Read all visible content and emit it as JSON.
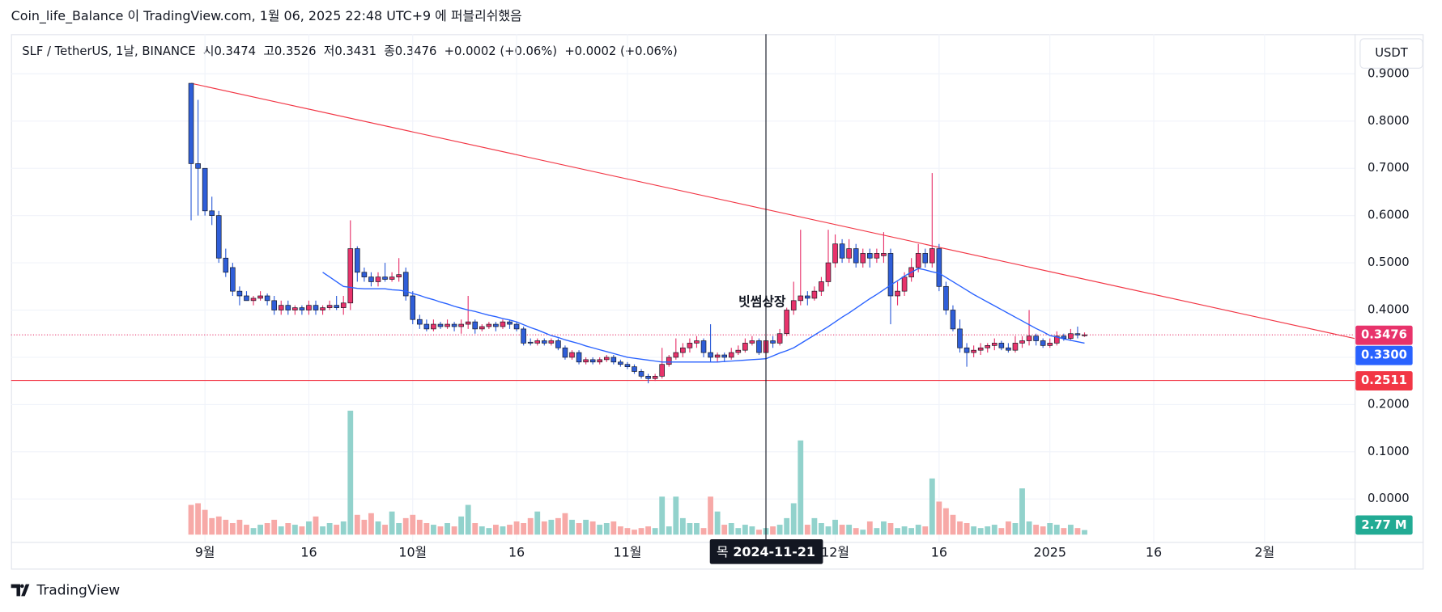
{
  "header": "Coin_life_Balance 이 TradingView.com, 1월 06, 2025 22:48 UTC+9 에 퍼블리쉬했음",
  "footer": "TradingView",
  "currency": "USDT",
  "chart_data": {
    "type": "candlestick",
    "legend": {
      "symbol": "SLF / TetherUS, 1날, BINANCE",
      "o_label": "시",
      "h_label": "고",
      "l_label": "저",
      "c_label": "종",
      "change": "+0.0002 (+0.06%)",
      "change2": "+0.0002 (+0.06%)"
    },
    "annotation": "빗썸상장",
    "crosshair": {
      "weekday": "목",
      "date": "2024-11-21"
    },
    "colors": {
      "up": "#e8336b",
      "down": "#2f5ed8",
      "ma": "#2962ff"
    },
    "volume_colors": {
      "up": "#92d2cc",
      "down": "#f7a9a7",
      "label": "#22ab94"
    },
    "hline": {
      "value": 0.2511,
      "color": "#f23645"
    },
    "trendline": {
      "points": [
        [
          "2024-08-30",
          0.88
        ],
        [
          "2024-12-15",
          0.536
        ]
      ],
      "color": "#f23645"
    },
    "last_labels": {
      "ma": "0.3300",
      "volume": "2.77 M"
    },
    "grid": true,
    "xlim": [
      "2024-08-04",
      "2025-02-14"
    ],
    "xticks": [
      {
        "value": "2024-09-01",
        "label": "9월"
      },
      {
        "value": "2024-09-16",
        "label": "16"
      },
      {
        "value": "2024-10-01",
        "label": "10월"
      },
      {
        "value": "2024-10-16",
        "label": "16"
      },
      {
        "value": "2024-11-01",
        "label": "11월"
      },
      {
        "value": "2024-12-01",
        "label": "12월"
      },
      {
        "value": "2024-12-16",
        "label": "16"
      },
      {
        "value": "2025-01-01",
        "label": "2025"
      },
      {
        "value": "2025-01-16",
        "label": "16"
      },
      {
        "value": "2025-02-01",
        "label": "2월"
      }
    ],
    "ylim": [
      -0.091,
      0.984
    ],
    "yticks": [
      {
        "value": 0.9,
        "label": "0.9000"
      },
      {
        "value": 0.8,
        "label": "0.8000"
      },
      {
        "value": 0.7,
        "label": "0.7000"
      },
      {
        "value": 0.6,
        "label": "0.6000"
      },
      {
        "value": 0.5,
        "label": "0.5000"
      },
      {
        "value": 0.4,
        "label": "0.4000"
      },
      {
        "value": 0.3,
        "label": "0.3000"
      },
      {
        "value": 0.2,
        "label": "0.2000"
      },
      {
        "value": 0.1,
        "label": "0.1000"
      },
      {
        "value": 0,
        "label": "0.0000"
      }
    ],
    "x": [
      "2024-08-30",
      "2024-08-31",
      "2024-09-01",
      "2024-09-02",
      "2024-09-03",
      "2024-09-04",
      "2024-09-05",
      "2024-09-06",
      "2024-09-07",
      "2024-09-08",
      "2024-09-09",
      "2024-09-10",
      "2024-09-11",
      "2024-09-12",
      "2024-09-13",
      "2024-09-14",
      "2024-09-15",
      "2024-09-16",
      "2024-09-17",
      "2024-09-18",
      "2024-09-19",
      "2024-09-20",
      "2024-09-21",
      "2024-09-22",
      "2024-09-23",
      "2024-09-24",
      "2024-09-25",
      "2024-09-26",
      "2024-09-27",
      "2024-09-28",
      "2024-09-29",
      "2024-09-30",
      "2024-10-01",
      "2024-10-02",
      "2024-10-03",
      "2024-10-04",
      "2024-10-05",
      "2024-10-06",
      "2024-10-07",
      "2024-10-08",
      "2024-10-09",
      "2024-10-10",
      "2024-10-11",
      "2024-10-12",
      "2024-10-13",
      "2024-10-14",
      "2024-10-15",
      "2024-10-16",
      "2024-10-17",
      "2024-10-18",
      "2024-10-19",
      "2024-10-20",
      "2024-10-21",
      "2024-10-22",
      "2024-10-23",
      "2024-10-24",
      "2024-10-25",
      "2024-10-26",
      "2024-10-27",
      "2024-10-28",
      "2024-10-29",
      "2024-10-30",
      "2024-10-31",
      "2024-11-01",
      "2024-11-02",
      "2024-11-03",
      "2024-11-04",
      "2024-11-05",
      "2024-11-06",
      "2024-11-07",
      "2024-11-08",
      "2024-11-09",
      "2024-11-10",
      "2024-11-11",
      "2024-11-12",
      "2024-11-13",
      "2024-11-14",
      "2024-11-15",
      "2024-11-16",
      "2024-11-17",
      "2024-11-18",
      "2024-11-19",
      "2024-11-20",
      "2024-11-21",
      "2024-11-22",
      "2024-11-23",
      "2024-11-24",
      "2024-11-25",
      "2024-11-26",
      "2024-11-27",
      "2024-11-28",
      "2024-11-29",
      "2024-11-30",
      "2024-12-01",
      "2024-12-02",
      "2024-12-03",
      "2024-12-04",
      "2024-12-05",
      "2024-12-06",
      "2024-12-07",
      "2024-12-08",
      "2024-12-09",
      "2024-12-10",
      "2024-12-11",
      "2024-12-12",
      "2024-12-13",
      "2024-12-14",
      "2024-12-15",
      "2024-12-16",
      "2024-12-17",
      "2024-12-18",
      "2024-12-19",
      "2024-12-20",
      "2024-12-21",
      "2024-12-22",
      "2024-12-23",
      "2024-12-24",
      "2024-12-25",
      "2024-12-26",
      "2024-12-27",
      "2024-12-28",
      "2024-12-29",
      "2024-12-30",
      "2024-12-31",
      "2025-01-01",
      "2025-01-02",
      "2025-01-03",
      "2025-01-04",
      "2025-01-05",
      "2025-01-06"
    ],
    "ohlc": [
      [
        0.88,
        0.88,
        0.59,
        0.71
      ],
      [
        0.71,
        0.845,
        0.6,
        0.7
      ],
      [
        0.7,
        0.7,
        0.6,
        0.61
      ],
      [
        0.61,
        0.64,
        0.58,
        0.6
      ],
      [
        0.6,
        0.61,
        0.5,
        0.51
      ],
      [
        0.51,
        0.53,
        0.47,
        0.48
      ],
      [
        0.49,
        0.5,
        0.43,
        0.44
      ],
      [
        0.44,
        0.45,
        0.41,
        0.43
      ],
      [
        0.43,
        0.44,
        0.42,
        0.42
      ],
      [
        0.42,
        0.43,
        0.41,
        0.425
      ],
      [
        0.425,
        0.44,
        0.42,
        0.43
      ],
      [
        0.43,
        0.435,
        0.41,
        0.42
      ],
      [
        0.42,
        0.43,
        0.39,
        0.4
      ],
      [
        0.4,
        0.42,
        0.39,
        0.41
      ],
      [
        0.41,
        0.42,
        0.39,
        0.4
      ],
      [
        0.4,
        0.41,
        0.39,
        0.405
      ],
      [
        0.405,
        0.41,
        0.39,
        0.4
      ],
      [
        0.4,
        0.42,
        0.39,
        0.41
      ],
      [
        0.41,
        0.42,
        0.39,
        0.4
      ],
      [
        0.4,
        0.41,
        0.39,
        0.405
      ],
      [
        0.405,
        0.42,
        0.4,
        0.41
      ],
      [
        0.41,
        0.43,
        0.4,
        0.405
      ],
      [
        0.405,
        0.43,
        0.39,
        0.415
      ],
      [
        0.415,
        0.59,
        0.4,
        0.53
      ],
      [
        0.53,
        0.535,
        0.46,
        0.48
      ],
      [
        0.48,
        0.49,
        0.46,
        0.47
      ],
      [
        0.47,
        0.48,
        0.45,
        0.46
      ],
      [
        0.46,
        0.48,
        0.45,
        0.47
      ],
      [
        0.47,
        0.5,
        0.46,
        0.465
      ],
      [
        0.465,
        0.48,
        0.46,
        0.47
      ],
      [
        0.47,
        0.51,
        0.46,
        0.475
      ],
      [
        0.48,
        0.49,
        0.42,
        0.43
      ],
      [
        0.43,
        0.44,
        0.37,
        0.38
      ],
      [
        0.38,
        0.39,
        0.36,
        0.37
      ],
      [
        0.37,
        0.38,
        0.355,
        0.36
      ],
      [
        0.36,
        0.38,
        0.355,
        0.37
      ],
      [
        0.37,
        0.375,
        0.36,
        0.365
      ],
      [
        0.365,
        0.38,
        0.36,
        0.37
      ],
      [
        0.37,
        0.375,
        0.355,
        0.365
      ],
      [
        0.365,
        0.38,
        0.35,
        0.37
      ],
      [
        0.37,
        0.43,
        0.36,
        0.375
      ],
      [
        0.375,
        0.38,
        0.35,
        0.36
      ],
      [
        0.36,
        0.37,
        0.355,
        0.365
      ],
      [
        0.365,
        0.375,
        0.36,
        0.37
      ],
      [
        0.37,
        0.375,
        0.355,
        0.365
      ],
      [
        0.365,
        0.38,
        0.36,
        0.375
      ],
      [
        0.375,
        0.38,
        0.36,
        0.37
      ],
      [
        0.37,
        0.375,
        0.355,
        0.36
      ],
      [
        0.36,
        0.365,
        0.325,
        0.33
      ],
      [
        0.332,
        0.34,
        0.325,
        0.33
      ],
      [
        0.33,
        0.34,
        0.325,
        0.335
      ],
      [
        0.335,
        0.34,
        0.325,
        0.33
      ],
      [
        0.33,
        0.34,
        0.325,
        0.335
      ],
      [
        0.335,
        0.34,
        0.315,
        0.32
      ],
      [
        0.32,
        0.325,
        0.295,
        0.3
      ],
      [
        0.3,
        0.315,
        0.295,
        0.31
      ],
      [
        0.31,
        0.315,
        0.285,
        0.29
      ],
      [
        0.29,
        0.3,
        0.285,
        0.295
      ],
      [
        0.295,
        0.3,
        0.285,
        0.29
      ],
      [
        0.29,
        0.3,
        0.285,
        0.295
      ],
      [
        0.295,
        0.305,
        0.29,
        0.3
      ],
      [
        0.3,
        0.305,
        0.285,
        0.29
      ],
      [
        0.29,
        0.295,
        0.28,
        0.285
      ],
      [
        0.285,
        0.29,
        0.275,
        0.28
      ],
      [
        0.28,
        0.285,
        0.265,
        0.27
      ],
      [
        0.27,
        0.275,
        0.255,
        0.26
      ],
      [
        0.26,
        0.265,
        0.245,
        0.255
      ],
      [
        0.255,
        0.265,
        0.25,
        0.26
      ],
      [
        0.26,
        0.32,
        0.255,
        0.285
      ],
      [
        0.285,
        0.305,
        0.28,
        0.3
      ],
      [
        0.3,
        0.34,
        0.295,
        0.31
      ],
      [
        0.31,
        0.33,
        0.3,
        0.32
      ],
      [
        0.32,
        0.34,
        0.31,
        0.33
      ],
      [
        0.33,
        0.345,
        0.32,
        0.335
      ],
      [
        0.335,
        0.34,
        0.3,
        0.31
      ],
      [
        0.31,
        0.37,
        0.29,
        0.3
      ],
      [
        0.3,
        0.31,
        0.29,
        0.305
      ],
      [
        0.305,
        0.31,
        0.29,
        0.3
      ],
      [
        0.3,
        0.32,
        0.295,
        0.31
      ],
      [
        0.31,
        0.325,
        0.305,
        0.315
      ],
      [
        0.315,
        0.34,
        0.31,
        0.33
      ],
      [
        0.33,
        0.345,
        0.325,
        0.335
      ],
      [
        0.335,
        0.34,
        0.305,
        0.31
      ],
      [
        0.31,
        0.345,
        0.3,
        0.335
      ],
      [
        0.335,
        0.345,
        0.32,
        0.33
      ],
      [
        0.33,
        0.36,
        0.325,
        0.35
      ],
      [
        0.35,
        0.405,
        0.345,
        0.4
      ],
      [
        0.4,
        0.46,
        0.39,
        0.42
      ],
      [
        0.42,
        0.57,
        0.41,
        0.43
      ],
      [
        0.43,
        0.44,
        0.41,
        0.425
      ],
      [
        0.425,
        0.45,
        0.42,
        0.44
      ],
      [
        0.44,
        0.47,
        0.43,
        0.46
      ],
      [
        0.46,
        0.57,
        0.45,
        0.5
      ],
      [
        0.5,
        0.56,
        0.49,
        0.54
      ],
      [
        0.54,
        0.55,
        0.5,
        0.51
      ],
      [
        0.51,
        0.55,
        0.5,
        0.53
      ],
      [
        0.53,
        0.54,
        0.49,
        0.5
      ],
      [
        0.5,
        0.53,
        0.49,
        0.52
      ],
      [
        0.52,
        0.53,
        0.49,
        0.51
      ],
      [
        0.51,
        0.53,
        0.5,
        0.52
      ],
      [
        0.515,
        0.565,
        0.5,
        0.52
      ],
      [
        0.52,
        0.53,
        0.37,
        0.43
      ],
      [
        0.43,
        0.46,
        0.41,
        0.44
      ],
      [
        0.44,
        0.48,
        0.43,
        0.47
      ],
      [
        0.47,
        0.51,
        0.46,
        0.49
      ],
      [
        0.49,
        0.54,
        0.48,
        0.52
      ],
      [
        0.52,
        0.53,
        0.49,
        0.5
      ],
      [
        0.5,
        0.69,
        0.49,
        0.53
      ],
      [
        0.53,
        0.54,
        0.44,
        0.45
      ],
      [
        0.45,
        0.46,
        0.39,
        0.4
      ],
      [
        0.4,
        0.41,
        0.355,
        0.36
      ],
      [
        0.36,
        0.38,
        0.31,
        0.32
      ],
      [
        0.32,
        0.33,
        0.28,
        0.31
      ],
      [
        0.31,
        0.325,
        0.3,
        0.315
      ],
      [
        0.315,
        0.33,
        0.305,
        0.32
      ],
      [
        0.32,
        0.33,
        0.31,
        0.325
      ],
      [
        0.325,
        0.34,
        0.315,
        0.33
      ],
      [
        0.33,
        0.335,
        0.315,
        0.32
      ],
      [
        0.32,
        0.33,
        0.31,
        0.315
      ],
      [
        0.315,
        0.345,
        0.31,
        0.33
      ],
      [
        0.33,
        0.345,
        0.32,
        0.335
      ],
      [
        0.335,
        0.4,
        0.325,
        0.345
      ],
      [
        0.345,
        0.35,
        0.325,
        0.335
      ],
      [
        0.335,
        0.34,
        0.32,
        0.325
      ],
      [
        0.325,
        0.34,
        0.32,
        0.33
      ],
      [
        0.33,
        0.355,
        0.325,
        0.345
      ],
      [
        0.345,
        0.35,
        0.335,
        0.34
      ],
      [
        0.34,
        0.36,
        0.335,
        0.35
      ],
      [
        0.35,
        0.365,
        0.34,
        0.3474
      ],
      [
        0.3474,
        0.3526,
        0.3431,
        0.3476
      ]
    ],
    "volume": [
      18,
      19,
      15,
      10,
      11,
      9,
      7,
      9,
      6,
      4,
      6,
      7,
      9,
      5,
      7,
      6,
      5,
      8,
      11,
      5,
      7,
      6,
      8,
      75,
      12,
      9,
      13,
      8,
      6,
      14,
      7,
      10,
      12,
      9,
      7,
      6,
      5,
      7,
      5,
      11,
      18,
      7,
      5,
      4,
      6,
      5,
      6,
      8,
      7,
      10,
      14,
      8,
      9,
      10,
      13,
      9,
      7,
      9,
      8,
      6,
      7,
      8,
      5,
      4,
      3,
      4,
      5,
      4,
      23,
      5,
      23,
      10,
      7,
      7,
      4,
      23,
      14,
      6,
      7,
      4,
      6,
      5,
      3,
      4,
      5,
      6,
      10,
      19,
      57,
      6,
      10,
      7,
      5,
      9,
      6,
      6,
      4,
      3,
      8,
      4,
      8,
      7,
      4,
      5,
      4,
      6,
      5,
      34,
      20,
      16,
      12,
      8,
      7,
      5,
      4,
      5,
      6,
      4,
      8,
      7,
      28,
      8,
      6,
      5,
      7,
      6,
      4,
      6,
      4,
      2.77
    ],
    "ma": [
      null,
      null,
      null,
      null,
      null,
      null,
      null,
      null,
      null,
      null,
      null,
      null,
      null,
      null,
      null,
      null,
      null,
      null,
      null,
      0.48,
      0.47,
      0.46,
      0.45,
      0.448,
      0.446,
      0.445,
      0.445,
      0.445,
      0.445,
      0.443,
      0.442,
      0.44,
      0.435,
      0.431,
      0.426,
      0.422,
      0.417,
      0.413,
      0.408,
      0.404,
      0.4,
      0.397,
      0.393,
      0.389,
      0.386,
      0.382,
      0.379,
      0.375,
      0.369,
      0.363,
      0.358,
      0.352,
      0.346,
      0.342,
      0.337,
      0.333,
      0.329,
      0.324,
      0.32,
      0.316,
      0.312,
      0.308,
      0.304,
      0.3,
      0.298,
      0.296,
      0.294,
      0.292,
      0.29,
      0.29,
      0.29,
      0.29,
      0.29,
      0.29,
      0.29,
      0.29,
      0.29,
      0.291,
      0.292,
      0.293,
      0.294,
      0.295,
      0.296,
      0.297,
      0.303,
      0.309,
      0.314,
      0.32,
      0.329,
      0.338,
      0.347,
      0.356,
      0.365,
      0.375,
      0.385,
      0.394,
      0.404,
      0.414,
      0.424,
      0.433,
      0.443,
      0.453,
      0.462,
      0.472,
      0.48,
      0.488,
      0.485,
      0.481,
      0.478,
      0.469,
      0.46,
      0.451,
      0.442,
      0.433,
      0.425,
      0.417,
      0.409,
      0.401,
      0.393,
      0.385,
      0.377,
      0.369,
      0.361,
      0.354,
      0.346,
      0.343,
      0.339,
      0.336,
      0.333,
      0.33
    ]
  }
}
